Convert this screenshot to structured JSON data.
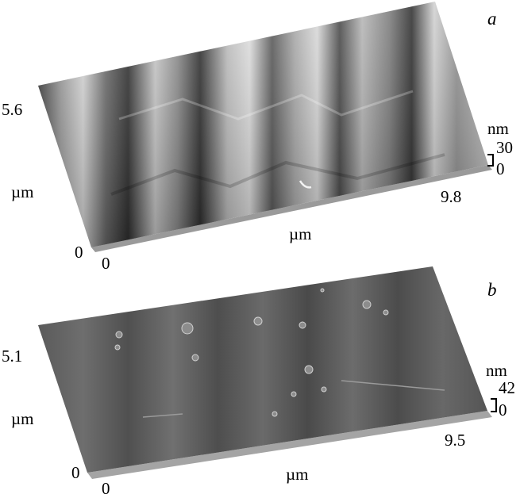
{
  "panels": [
    {
      "letter": "a",
      "y_max": "5.6",
      "y_unit": "µm",
      "origin_y": "0",
      "origin_x": "0",
      "x_unit": "µm",
      "x_max": "9.8",
      "z_unit": "nm",
      "z_max": "30",
      "z_min": "0"
    },
    {
      "letter": "b",
      "y_max": "5.1",
      "y_unit": "µm",
      "origin_y": "0",
      "origin_x": "0",
      "x_unit": "µm",
      "x_max": "9.5",
      "z_unit": "nm",
      "z_max": "42",
      "z_min": "0"
    }
  ]
}
